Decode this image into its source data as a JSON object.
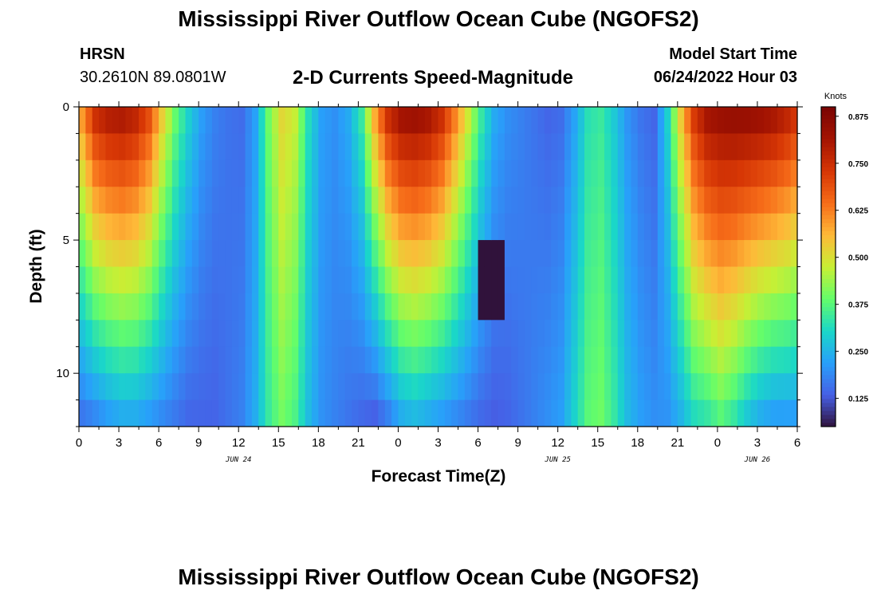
{
  "header": {
    "title": "Mississippi River Outflow Ocean Cube (NGOFS2)",
    "station": "HRSN",
    "coords": "30.2610N  89.0801W",
    "subtitle": "2-D Currents Speed-Magnitude",
    "model_start_label": "Model Start Time",
    "model_start_value": "06/24/2022 Hour 03"
  },
  "footer": {
    "title": "Mississippi River Outflow Ocean Cube (NGOFS2)"
  },
  "chart_data": {
    "type": "heatmap",
    "title": "2-D Currents Speed-Magnitude",
    "xlabel": "Forecast Time(Z)",
    "ylabel": "Depth (ft)",
    "x_tick_labels": [
      "0",
      "3",
      "6",
      "9",
      "12",
      "15",
      "18",
      "21",
      "0",
      "3",
      "6",
      "9",
      "12",
      "15",
      "18",
      "21",
      "0",
      "3",
      "6"
    ],
    "x_tick_hours": [
      0,
      3,
      6,
      9,
      12,
      15,
      18,
      21,
      24,
      27,
      30,
      33,
      36,
      39,
      42,
      45,
      48,
      51,
      54
    ],
    "x_range_hours": [
      0,
      54
    ],
    "date_labels": [
      {
        "label": "JUN 24",
        "hour": 12
      },
      {
        "label": "JUN 25",
        "hour": 36
      },
      {
        "label": "JUN 26",
        "hour": 51
      }
    ],
    "y_tick_labels": [
      "0",
      "5",
      "10"
    ],
    "y_tick_values": [
      0,
      5,
      10
    ],
    "y_range_ft": [
      0,
      12
    ],
    "depth_levels_ft": [
      0.5,
      1.5,
      2.5,
      3.5,
      4.5,
      5.5,
      6.5,
      7.5,
      8.5,
      9.5,
      10.5,
      11.5
    ],
    "colorbar": {
      "unit": "Knots",
      "ticks": [
        "0.875",
        "0.750",
        "0.625",
        "0.500",
        "0.375",
        "0.250",
        "0.125"
      ],
      "tick_values": [
        0.875,
        0.75,
        0.625,
        0.5,
        0.375,
        0.25,
        0.125
      ],
      "range": [
        0.05,
        0.9
      ]
    },
    "time_profile_hours": [
      0,
      1,
      2,
      3,
      4,
      5,
      6,
      7,
      8,
      9,
      10,
      11,
      12,
      13,
      14,
      15,
      16,
      17,
      18,
      19,
      20,
      21,
      22,
      23,
      24,
      25,
      26,
      27,
      28,
      29,
      30,
      31,
      32,
      33,
      34,
      35,
      36,
      37,
      38,
      39,
      40,
      41,
      42,
      43,
      44,
      45,
      46,
      47,
      48,
      49,
      50,
      51,
      52,
      53,
      54
    ],
    "surface_speed_knots": [
      0.62,
      0.78,
      0.82,
      0.83,
      0.8,
      0.72,
      0.55,
      0.4,
      0.3,
      0.22,
      0.18,
      0.16,
      0.15,
      0.22,
      0.4,
      0.52,
      0.48,
      0.32,
      0.22,
      0.2,
      0.24,
      0.35,
      0.6,
      0.78,
      0.85,
      0.86,
      0.84,
      0.78,
      0.65,
      0.5,
      0.35,
      0.24,
      0.2,
      0.18,
      0.16,
      0.14,
      0.15,
      0.22,
      0.32,
      0.34,
      0.28,
      0.2,
      0.16,
      0.14,
      0.3,
      0.55,
      0.75,
      0.84,
      0.86,
      0.87,
      0.87,
      0.86,
      0.84,
      0.8,
      0.74
    ],
    "bottom_speed_knots": [
      0.15,
      0.17,
      0.2,
      0.22,
      0.22,
      0.2,
      0.18,
      0.16,
      0.14,
      0.14,
      0.14,
      0.16,
      0.18,
      0.24,
      0.34,
      0.4,
      0.36,
      0.26,
      0.2,
      0.18,
      0.16,
      0.14,
      0.12,
      0.16,
      0.22,
      0.24,
      0.22,
      0.2,
      0.18,
      0.16,
      0.14,
      0.13,
      0.14,
      0.16,
      0.18,
      0.2,
      0.22,
      0.3,
      0.38,
      0.4,
      0.34,
      0.26,
      0.22,
      0.2,
      0.2,
      0.24,
      0.3,
      0.32,
      0.36,
      0.32,
      0.26,
      0.22,
      0.2,
      0.2,
      0.2
    ],
    "low_speed_core": {
      "hours": [
        30,
        32
      ],
      "depth_ft": [
        5.5,
        7.5
      ],
      "speed_knots": 0.05
    }
  }
}
